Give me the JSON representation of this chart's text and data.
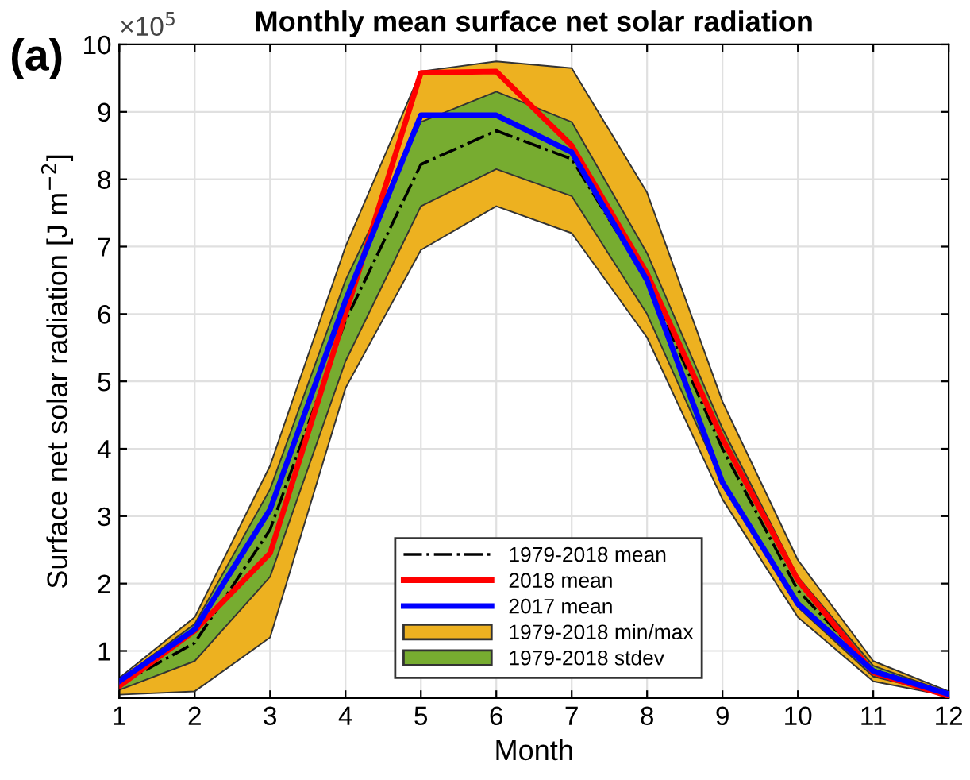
{
  "chart_data": {
    "type": "line",
    "title": "Monthly mean surface net solar radiation",
    "xlabel": "Month",
    "ylabel": "Surface net solar radiation [J m$^{−2}$]",
    "annotations": [
      "(a)",
      "×10$^{5}$"
    ],
    "x": [
      1,
      2,
      3,
      4,
      5,
      6,
      7,
      8,
      9,
      10,
      11,
      12
    ],
    "xlim": [
      1,
      12
    ],
    "xticks": [
      1,
      2,
      3,
      4,
      5,
      6,
      7,
      8,
      9,
      10,
      11,
      12
    ],
    "ylim": [
      0.3,
      10
    ],
    "yticks": [
      1,
      2,
      3,
      4,
      5,
      6,
      7,
      8,
      9,
      10
    ],
    "grid": true,
    "legend": "bottom",
    "series": [
      {
        "name": "1979-2018 min/max",
        "type": "area",
        "color": "#edb120",
        "values": [
          null,
          null,
          null,
          null,
          null,
          null,
          null,
          null,
          null,
          null,
          null,
          null
        ],
        "lower": [
          0.35,
          0.4,
          1.2,
          4.9,
          6.95,
          7.6,
          7.2,
          5.65,
          3.25,
          1.5,
          0.55,
          0.33
        ],
        "upper": [
          0.6,
          1.5,
          3.75,
          7.0,
          9.6,
          9.75,
          9.65,
          7.8,
          4.7,
          2.35,
          0.85,
          0.4
        ]
      },
      {
        "name": "1979-2018 stdev",
        "type": "area",
        "color": "#77ac30",
        "values": [
          null,
          null,
          null,
          null,
          null,
          null,
          null,
          null,
          null,
          null,
          null,
          null
        ],
        "lower": [
          0.42,
          0.85,
          2.1,
          5.3,
          7.6,
          8.15,
          7.75,
          6.0,
          3.5,
          1.65,
          0.62,
          0.35
        ],
        "upper": [
          0.57,
          1.4,
          3.4,
          6.5,
          8.85,
          9.3,
          8.85,
          6.9,
          4.3,
          2.1,
          0.78,
          0.38
        ]
      },
      {
        "name": "1979-2018 mean",
        "color": "#000000",
        "line_style": "dashdot",
        "values": [
          0.5,
          1.12,
          2.8,
          5.9,
          8.22,
          8.72,
          8.3,
          6.5,
          4.0,
          1.9,
          0.72,
          0.37
        ]
      },
      {
        "name": "2018 mean",
        "color": "#ff0000",
        "line_style": "solid",
        "values": [
          0.48,
          1.3,
          2.45,
          6.0,
          9.58,
          9.6,
          8.5,
          6.6,
          4.15,
          2.05,
          0.68,
          0.33
        ]
      },
      {
        "name": "2017 mean",
        "color": "#0000ff",
        "line_style": "solid",
        "values": [
          0.55,
          1.32,
          3.1,
          6.2,
          8.95,
          8.95,
          8.4,
          6.5,
          3.5,
          1.7,
          0.7,
          0.36
        ]
      }
    ]
  }
}
